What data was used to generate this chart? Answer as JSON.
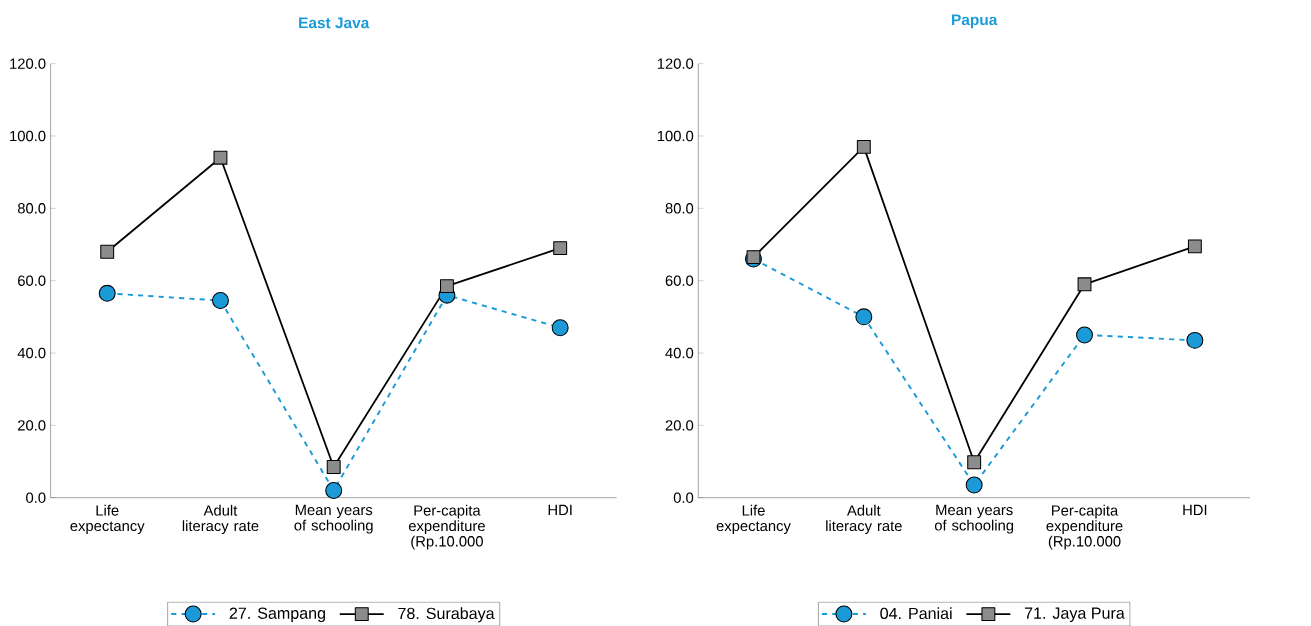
{
  "chart_data": [
    {
      "type": "line",
      "title": "East Java",
      "categories": [
        "Life expectancy",
        "Adult literacy rate",
        "Mean years of schooling",
        "Per-capita expenditure (Rp.10.000",
        "HDI"
      ],
      "series": [
        {
          "name": "27. Sampang",
          "color": "#1b9ad7",
          "values": [
            56.5,
            54.5,
            2.0,
            56.0,
            47.0
          ],
          "marker": "circle",
          "line_style": "dashed"
        },
        {
          "name": "78. Surabaya",
          "color": "#000000",
          "values": [
            68.0,
            94.0,
            8.5,
            58.5,
            69.0
          ],
          "marker": "square",
          "line_style": "solid"
        }
      ],
      "ylim": [
        0,
        120
      ],
      "yticks": [
        {
          "value": 0,
          "label": "0.0"
        },
        {
          "value": 20,
          "label": "20.0"
        },
        {
          "value": 40,
          "label": "40.0"
        },
        {
          "value": 60,
          "label": "60.0"
        },
        {
          "value": 80,
          "label": "80.0"
        },
        {
          "value": 100,
          "label": "100.0"
        },
        {
          "value": 120,
          "label": "120.0"
        }
      ],
      "legend": "bottom"
    },
    {
      "type": "line",
      "title": "Papua",
      "categories": [
        "Life expectancy",
        "Adult literacy rate",
        "Mean years of schooling",
        "Per-capita expenditure (Rp.10.000",
        "HDI"
      ],
      "series": [
        {
          "name": "04. Paniai",
          "color": "#1b9ad7",
          "values": [
            66.0,
            50.0,
            3.5,
            45.0,
            43.5
          ],
          "marker": "circle",
          "line_style": "dashed"
        },
        {
          "name": "71. Jaya Pura",
          "color": "#000000",
          "values": [
            66.5,
            97.0,
            9.8,
            59.0,
            69.5
          ],
          "marker": "square",
          "line_style": "solid"
        }
      ],
      "ylim": [
        0,
        120
      ],
      "yticks": [
        {
          "value": 0,
          "label": "0.0"
        },
        {
          "value": 20,
          "label": "20.0"
        },
        {
          "value": 40,
          "label": "40.0"
        },
        {
          "value": 60,
          "label": "60.0"
        },
        {
          "value": 80,
          "label": "80.0"
        },
        {
          "value": 100,
          "label": "100.0"
        },
        {
          "value": 120,
          "label": "120.0"
        }
      ],
      "legend": "bottom"
    }
  ]
}
